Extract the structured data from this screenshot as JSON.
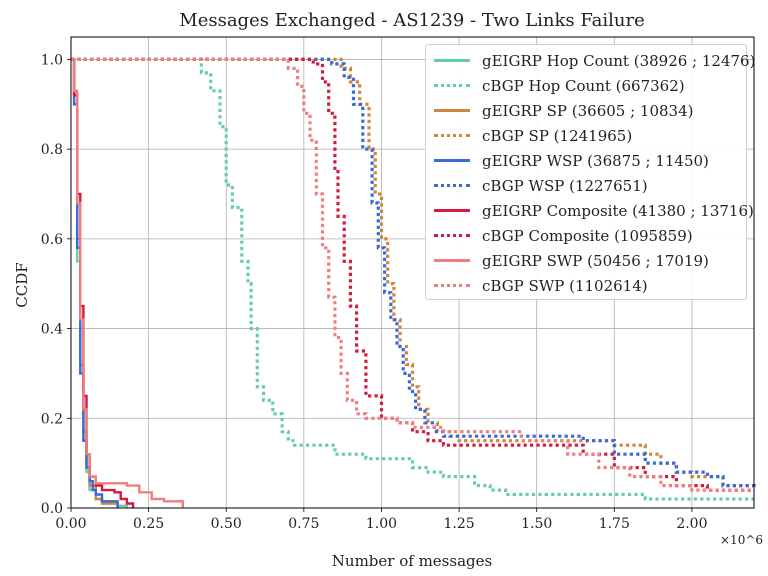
{
  "chart_data": {
    "type": "line",
    "title": "Messages Exchanged - AS1239 - Two Links Failure",
    "xlabel": "Number of messages",
    "ylabel": "CCDF",
    "x_multiplier": "×10^6",
    "xlim": [
      0,
      2.2
    ],
    "ylim": [
      0,
      1.05
    ],
    "xticks": [
      "0.00",
      "0.25",
      "0.50",
      "0.75",
      "1.00",
      "1.25",
      "1.50",
      "1.75",
      "2.00"
    ],
    "yticks": [
      "0.0",
      "0.2",
      "0.4",
      "0.6",
      "0.8",
      "1.0"
    ],
    "grid": true,
    "legend_position": "top-right",
    "series": [
      {
        "name": "gEIGRP Hop Count (38926 ; 12476)",
        "color": "#66CDAA",
        "style": "solid",
        "x": [
          0,
          0.01,
          0.02,
          0.03,
          0.04,
          0.05,
          0.06,
          0.08,
          0.1,
          0.15,
          0.18
        ],
        "y": [
          1.0,
          0.9,
          0.55,
          0.3,
          0.15,
          0.08,
          0.04,
          0.02,
          0.01,
          0.005,
          0.0
        ]
      },
      {
        "name": "cBGP Hop Count (667362)",
        "color": "#66CDAA",
        "style": "dotted",
        "x": [
          0,
          0.37,
          0.42,
          0.45,
          0.48,
          0.5,
          0.52,
          0.55,
          0.57,
          0.58,
          0.6,
          0.62,
          0.65,
          0.68,
          0.7,
          0.72,
          0.75,
          0.8,
          0.85,
          0.9,
          0.95,
          1.0,
          1.05,
          1.1,
          1.15,
          1.2,
          1.3,
          1.35,
          1.4,
          1.6,
          1.85,
          2.0,
          2.2
        ],
        "y": [
          1.0,
          1.0,
          0.97,
          0.93,
          0.85,
          0.72,
          0.67,
          0.55,
          0.5,
          0.4,
          0.27,
          0.24,
          0.21,
          0.17,
          0.15,
          0.14,
          0.14,
          0.14,
          0.12,
          0.12,
          0.11,
          0.11,
          0.11,
          0.09,
          0.08,
          0.07,
          0.05,
          0.04,
          0.03,
          0.03,
          0.02,
          0.02,
          0.02
        ]
      },
      {
        "name": "gEIGRP SP (36605 ; 10834)",
        "color": "#CD853F",
        "style": "solid",
        "x": [
          0,
          0.01,
          0.02,
          0.03,
          0.04,
          0.05,
          0.06,
          0.08,
          0.1,
          0.15
        ],
        "y": [
          1.0,
          0.92,
          0.6,
          0.32,
          0.17,
          0.09,
          0.05,
          0.02,
          0.01,
          0.0
        ]
      },
      {
        "name": "cBGP SP (1241965)",
        "color": "#CD853F",
        "style": "dotted",
        "x": [
          0,
          0.84,
          0.87,
          0.9,
          0.93,
          0.96,
          0.98,
          1.0,
          1.02,
          1.04,
          1.06,
          1.08,
          1.1,
          1.12,
          1.15,
          1.18,
          1.22,
          1.25,
          1.35,
          1.5,
          1.7,
          1.75,
          1.8,
          1.85,
          1.9,
          1.95,
          2.0,
          2.1,
          2.2
        ],
        "y": [
          1.0,
          1.0,
          0.98,
          0.95,
          0.9,
          0.8,
          0.7,
          0.6,
          0.5,
          0.42,
          0.36,
          0.32,
          0.27,
          0.22,
          0.19,
          0.17,
          0.16,
          0.15,
          0.15,
          0.15,
          0.15,
          0.14,
          0.14,
          0.12,
          0.1,
          0.08,
          0.07,
          0.05,
          0.04
        ]
      },
      {
        "name": "gEIGRP WSP (36875 ; 11450)",
        "color": "#3A6AD6",
        "style": "solid",
        "x": [
          0,
          0.01,
          0.02,
          0.03,
          0.04,
          0.05,
          0.06,
          0.07,
          0.08,
          0.1,
          0.12,
          0.15
        ],
        "y": [
          1.0,
          0.9,
          0.58,
          0.3,
          0.15,
          0.09,
          0.06,
          0.04,
          0.03,
          0.015,
          0.015,
          0.0
        ]
      },
      {
        "name": "cBGP WSP (1227651)",
        "color": "#3A6AD6",
        "style": "dotted",
        "x": [
          0,
          0.8,
          0.84,
          0.88,
          0.91,
          0.94,
          0.97,
          0.99,
          1.01,
          1.03,
          1.05,
          1.07,
          1.09,
          1.11,
          1.14,
          1.17,
          1.2,
          1.25,
          1.4,
          1.55,
          1.65,
          1.75,
          1.85,
          1.95,
          2.05,
          2.1,
          2.2
        ],
        "y": [
          1.0,
          1.0,
          0.99,
          0.96,
          0.9,
          0.8,
          0.68,
          0.58,
          0.48,
          0.42,
          0.36,
          0.3,
          0.26,
          0.22,
          0.19,
          0.17,
          0.16,
          0.16,
          0.16,
          0.16,
          0.15,
          0.12,
          0.1,
          0.08,
          0.07,
          0.05,
          0.04
        ]
      },
      {
        "name": "gEIGRP Composite (41380 ; 13716)",
        "color": "#D41A3F",
        "style": "solid",
        "x": [
          0,
          0.01,
          0.02,
          0.03,
          0.04,
          0.05,
          0.06,
          0.08,
          0.1,
          0.12,
          0.14,
          0.16,
          0.18,
          0.2
        ],
        "y": [
          1.0,
          0.92,
          0.7,
          0.45,
          0.25,
          0.12,
          0.07,
          0.05,
          0.04,
          0.04,
          0.035,
          0.02,
          0.01,
          0.0
        ]
      },
      {
        "name": "cBGP Composite (1095859)",
        "color": "#D41A3F",
        "style": "dotted",
        "x": [
          0,
          0.78,
          0.81,
          0.83,
          0.85,
          0.86,
          0.88,
          0.9,
          0.92,
          0.95,
          1.0,
          1.05,
          1.1,
          1.15,
          1.2,
          1.25,
          1.35,
          1.45,
          1.55,
          1.65,
          1.75,
          1.85,
          1.95,
          2.05,
          2.2
        ],
        "y": [
          1.0,
          0.99,
          0.95,
          0.88,
          0.75,
          0.65,
          0.55,
          0.45,
          0.35,
          0.25,
          0.2,
          0.19,
          0.17,
          0.15,
          0.14,
          0.14,
          0.14,
          0.14,
          0.14,
          0.12,
          0.09,
          0.07,
          0.05,
          0.04,
          0.04
        ]
      },
      {
        "name": "gEIGRP SWP (50456 ; 17019)",
        "color": "#EF7F7F",
        "style": "solid",
        "x": [
          0,
          0.01,
          0.02,
          0.03,
          0.04,
          0.05,
          0.06,
          0.08,
          0.1,
          0.14,
          0.18,
          0.22,
          0.26,
          0.3,
          0.36
        ],
        "y": [
          1.0,
          0.93,
          0.68,
          0.42,
          0.22,
          0.12,
          0.07,
          0.055,
          0.055,
          0.055,
          0.05,
          0.035,
          0.02,
          0.015,
          0.0
        ]
      },
      {
        "name": "cBGP SWP (1102614)",
        "color": "#EF7F7F",
        "style": "dotted",
        "x": [
          0,
          0.7,
          0.73,
          0.75,
          0.77,
          0.79,
          0.81,
          0.83,
          0.85,
          0.87,
          0.89,
          0.92,
          0.95,
          1.0,
          1.05,
          1.1,
          1.2,
          1.3,
          1.45,
          1.6,
          1.7,
          1.8,
          1.9,
          2.0,
          2.2
        ],
        "y": [
          1.0,
          0.98,
          0.94,
          0.88,
          0.82,
          0.7,
          0.58,
          0.47,
          0.38,
          0.3,
          0.24,
          0.21,
          0.2,
          0.2,
          0.19,
          0.18,
          0.17,
          0.17,
          0.15,
          0.12,
          0.09,
          0.07,
          0.05,
          0.04,
          0.04
        ]
      }
    ]
  }
}
